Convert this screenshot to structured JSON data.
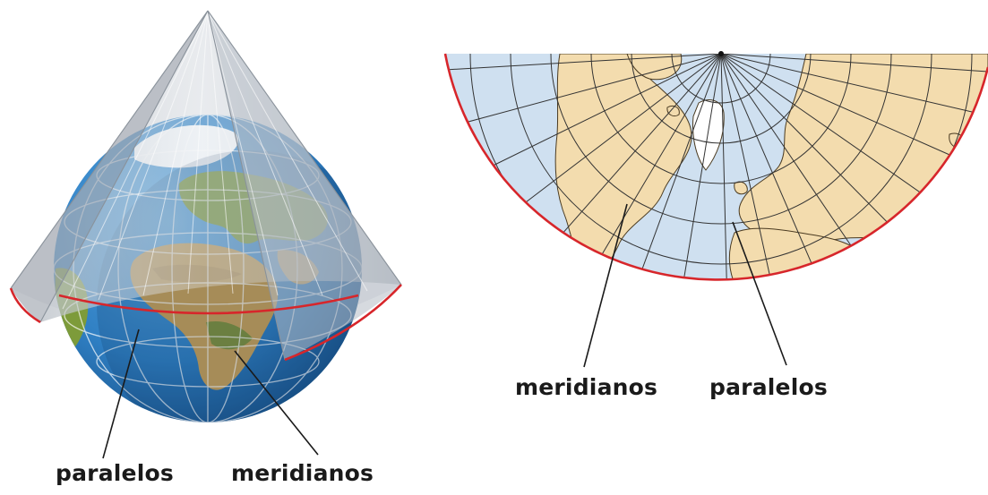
{
  "labels": {
    "globe_parallels": "paralelos",
    "globe_meridians": "meridianos",
    "map_meridians": "meridianos",
    "map_parallels": "paralelos"
  },
  "colors": {
    "ocean": "#2f7fc3",
    "ocean_deep": "#1b5e9a",
    "land_green": "#7d9b3a",
    "land_desert": "#c9a25a",
    "ice": "#f2f6fa",
    "cone": "#c8cdd3",
    "red_line": "#d7262b",
    "map_sea": "#cfe0f0",
    "map_land": "#f3dcae",
    "grid_line": "#333333"
  }
}
